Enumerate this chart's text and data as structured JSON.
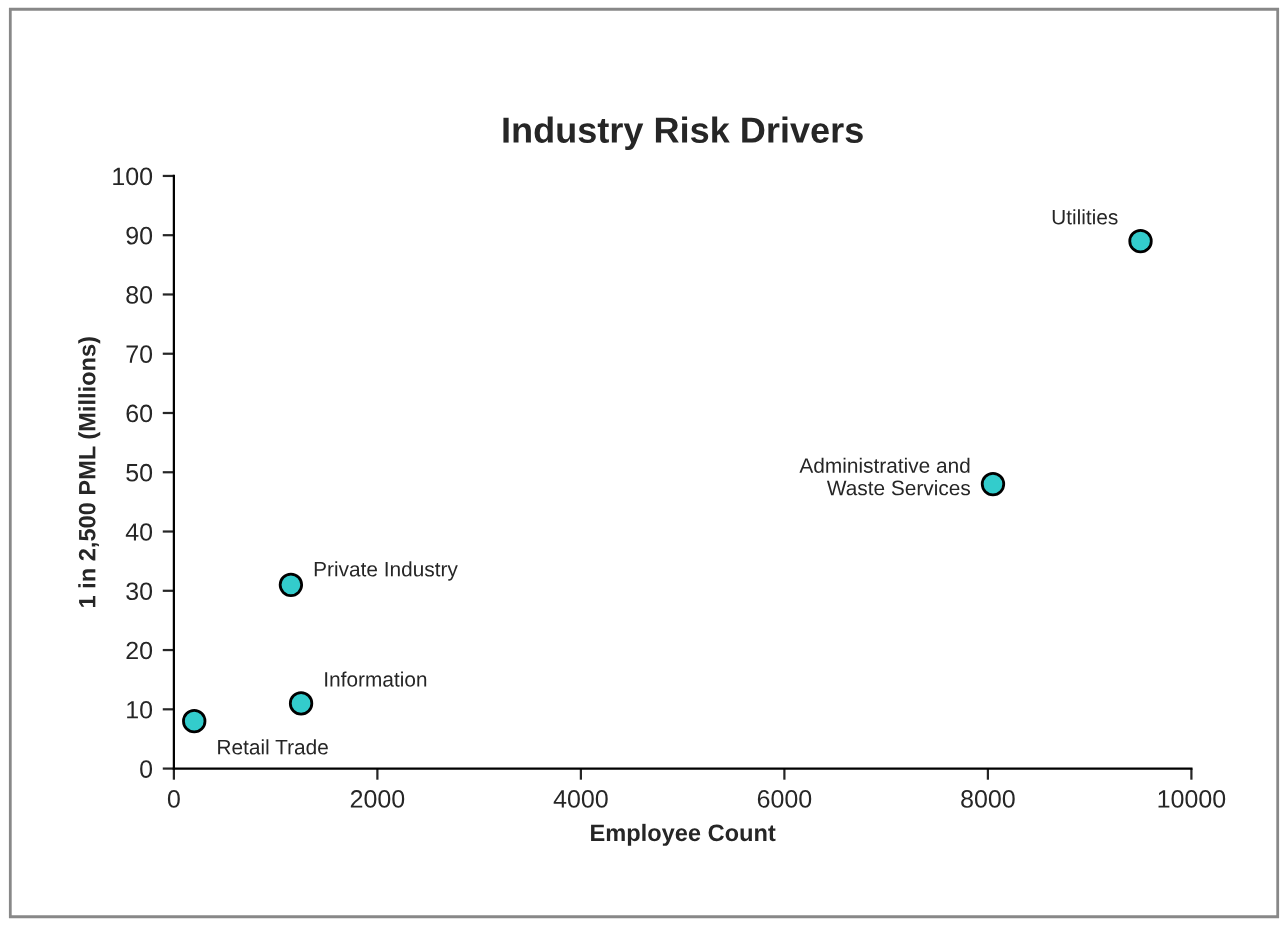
{
  "chart_data": {
    "type": "scatter",
    "title": "Industry Risk Drivers",
    "xlabel": "Employee Count",
    "ylabel": "1 in 2,500 PML (Millions)",
    "series": [
      {
        "color": "#33cccc",
        "x": [
          200,
          1250,
          1150,
          8050,
          9500
        ],
        "values": [
          8,
          11,
          31,
          48,
          89
        ]
      }
    ],
    "annotations": [
      {
        "text": "Retail Trade",
        "x": 200,
        "y": 8
      },
      {
        "text": "Information",
        "x": 1250,
        "y": 11
      },
      {
        "text": "Private Industry",
        "x": 1150,
        "y": 31
      },
      {
        "text": "Administrative and\nWaste Services",
        "x": 8050,
        "y": 48
      },
      {
        "text": "Utilities",
        "x": 9500,
        "y": 89
      }
    ],
    "xlim": [
      0,
      10000
    ],
    "xticks": [
      0,
      2000,
      4000,
      6000,
      8000,
      10000
    ],
    "ylim": [
      0,
      100
    ],
    "yticks": [
      0,
      10,
      20,
      30,
      40,
      50,
      60,
      70,
      80,
      90,
      100
    ],
    "grid": false,
    "marker": "circle",
    "legend": false
  }
}
